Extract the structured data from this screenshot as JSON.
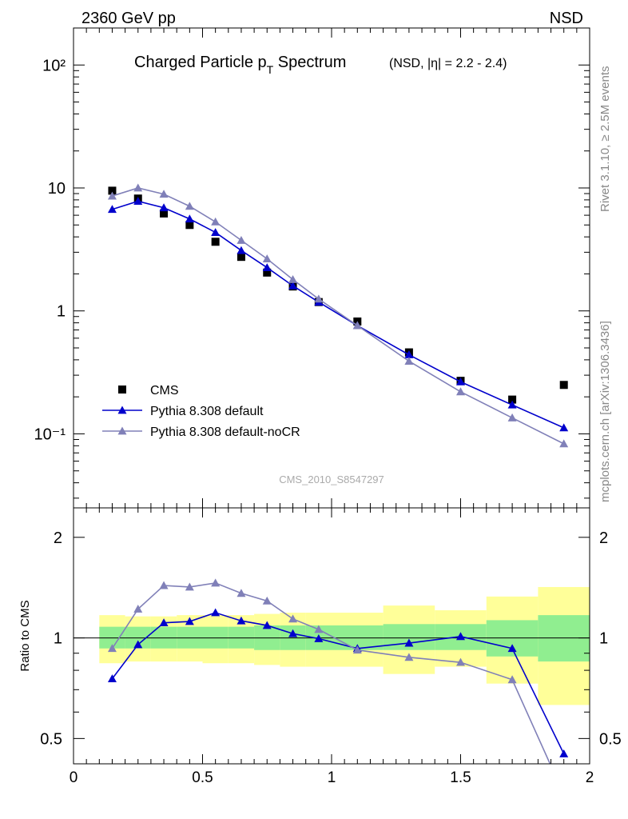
{
  "header": {
    "left_label": "2360 GeV pp",
    "right_label": "NSD"
  },
  "side_labels": {
    "rivet": "Rivet 3.1.10, ≥ 2.5M events",
    "mcplots": "mcplots.cern.ch [arXiv:1306.3436]"
  },
  "chart_data": [
    {
      "type": "scatter",
      "title": "Charged Particle p",
      "title_sub": "T",
      "title_rest": " Spectrum",
      "subtitle": "(NSD, |η| = 2.2 - 2.4)",
      "watermark": "CMS_2010_S8547297",
      "y_log": true,
      "xlim": [
        0,
        2
      ],
      "ylim": [
        0.025,
        200
      ],
      "y_tick_labels": [
        "10⁻¹",
        "1",
        "10",
        "10²"
      ],
      "x": [
        0.15,
        0.25,
        0.35,
        0.45,
        0.55,
        0.65,
        0.75,
        0.85,
        0.95,
        1.1,
        1.3,
        1.5,
        1.7,
        1.9
      ],
      "series": [
        {
          "name": "CMS",
          "color": "#000000",
          "marker": "square",
          "line": false,
          "values": [
            9.5,
            8.2,
            6.2,
            5.0,
            3.65,
            2.75,
            2.05,
            1.58,
            1.18,
            0.82,
            0.46,
            0.27,
            0.19,
            0.25
          ]
        },
        {
          "name": "Pythia 8.308 default",
          "color": "#0000cc",
          "marker": "triangle",
          "line": true,
          "values": [
            6.7,
            7.8,
            6.9,
            5.6,
            4.35,
            3.1,
            2.25,
            1.6,
            1.18,
            0.76,
            0.44,
            0.265,
            0.172,
            0.112
          ]
        },
        {
          "name": "Pythia 8.308 default-noCR",
          "color": "#8080b8",
          "marker": "triangle",
          "line": true,
          "values": [
            8.6,
            10.0,
            8.9,
            7.1,
            5.3,
            3.75,
            2.65,
            1.8,
            1.25,
            0.76,
            0.39,
            0.22,
            0.135,
            0.083
          ]
        }
      ]
    },
    {
      "type": "line",
      "ylabel": "Ratio to CMS",
      "y_log": true,
      "xlim": [
        0,
        2
      ],
      "ylim": [
        0.42,
        2.45
      ],
      "x_tick_labels": [
        "0",
        "0.5",
        "1",
        "1.5",
        "2"
      ],
      "y_tick_labels": [
        "0.5",
        "1",
        "2"
      ],
      "x": [
        0.15,
        0.25,
        0.35,
        0.45,
        0.55,
        0.65,
        0.75,
        0.85,
        0.95,
        1.1,
        1.3,
        1.5,
        1.7,
        1.9
      ],
      "bands": {
        "edges": [
          0.1,
          0.2,
          0.3,
          0.4,
          0.5,
          0.6,
          0.7,
          0.8,
          0.9,
          1.0,
          1.2,
          1.4,
          1.6,
          1.8,
          2.0
        ],
        "stat_color": "#90ee90",
        "syst_color": "#ffff99",
        "stat_lo": [
          0.93,
          0.93,
          0.93,
          0.93,
          0.93,
          0.93,
          0.92,
          0.92,
          0.92,
          0.92,
          0.92,
          0.92,
          0.88,
          0.85
        ],
        "stat_hi": [
          1.08,
          1.08,
          1.08,
          1.08,
          1.08,
          1.08,
          1.09,
          1.09,
          1.09,
          1.09,
          1.1,
          1.1,
          1.13,
          1.17
        ],
        "syst_lo": [
          0.84,
          0.85,
          0.85,
          0.85,
          0.84,
          0.84,
          0.83,
          0.82,
          0.82,
          0.82,
          0.78,
          0.82,
          0.73,
          0.63
        ],
        "syst_hi": [
          1.17,
          1.16,
          1.16,
          1.17,
          1.17,
          1.17,
          1.18,
          1.19,
          1.19,
          1.19,
          1.25,
          1.21,
          1.33,
          1.42
        ]
      },
      "series": [
        {
          "name": "Pythia 8.308 default",
          "color": "#0000cc",
          "values": [
            0.755,
            0.955,
            1.11,
            1.12,
            1.19,
            1.125,
            1.09,
            1.03,
            0.995,
            0.93,
            0.965,
            1.01,
            0.93,
            0.45
          ]
        },
        {
          "name": "Pythia 8.308 default-noCR",
          "color": "#8080b8",
          "values": [
            0.93,
            1.22,
            1.435,
            1.42,
            1.46,
            1.36,
            1.29,
            1.14,
            1.06,
            0.92,
            0.875,
            0.845,
            0.75,
            0.34
          ]
        }
      ]
    }
  ]
}
